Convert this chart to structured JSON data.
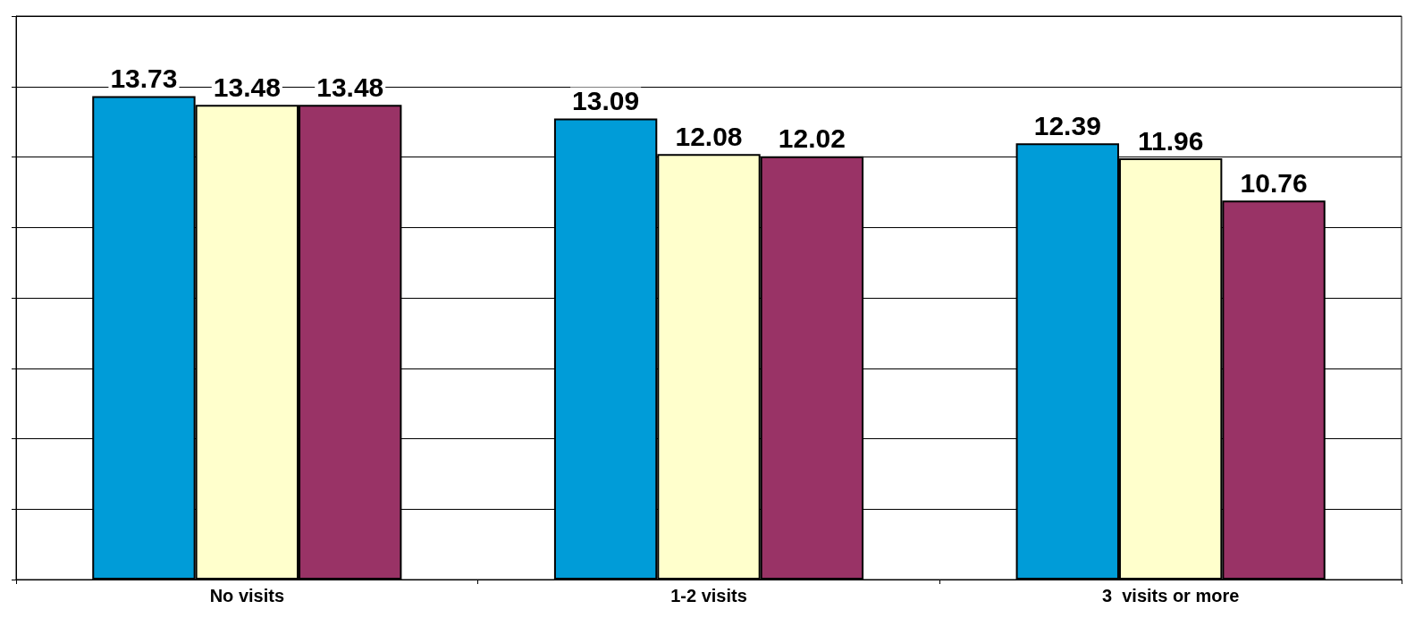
{
  "chart_data": {
    "type": "bar",
    "categories": [
      "No visits",
      "1-2 visits",
      "3  visits or more"
    ],
    "series": [
      {
        "color": "#009cd8",
        "values": [
          13.73,
          13.09,
          12.39
        ]
      },
      {
        "color": "#ffffcc",
        "values": [
          13.48,
          12.08,
          11.96
        ]
      },
      {
        "color": "#993366",
        "values": [
          13.48,
          12.02,
          10.76
        ]
      }
    ],
    "ylim": [
      0,
      16
    ],
    "yticks": [
      {
        "value": 0,
        "label": null
      },
      {
        "value": 2,
        "label": null
      },
      {
        "value": 4,
        "label": null
      },
      {
        "value": 6,
        "label": null
      },
      {
        "value": 8,
        "label": null
      },
      {
        "value": 10,
        "label": null
      },
      {
        "value": 12,
        "label": null
      },
      {
        "value": 14,
        "label": null
      },
      {
        "value": 16,
        "label": null
      }
    ],
    "grid": "y",
    "tick_labels": "x",
    "data_labels": true
  }
}
